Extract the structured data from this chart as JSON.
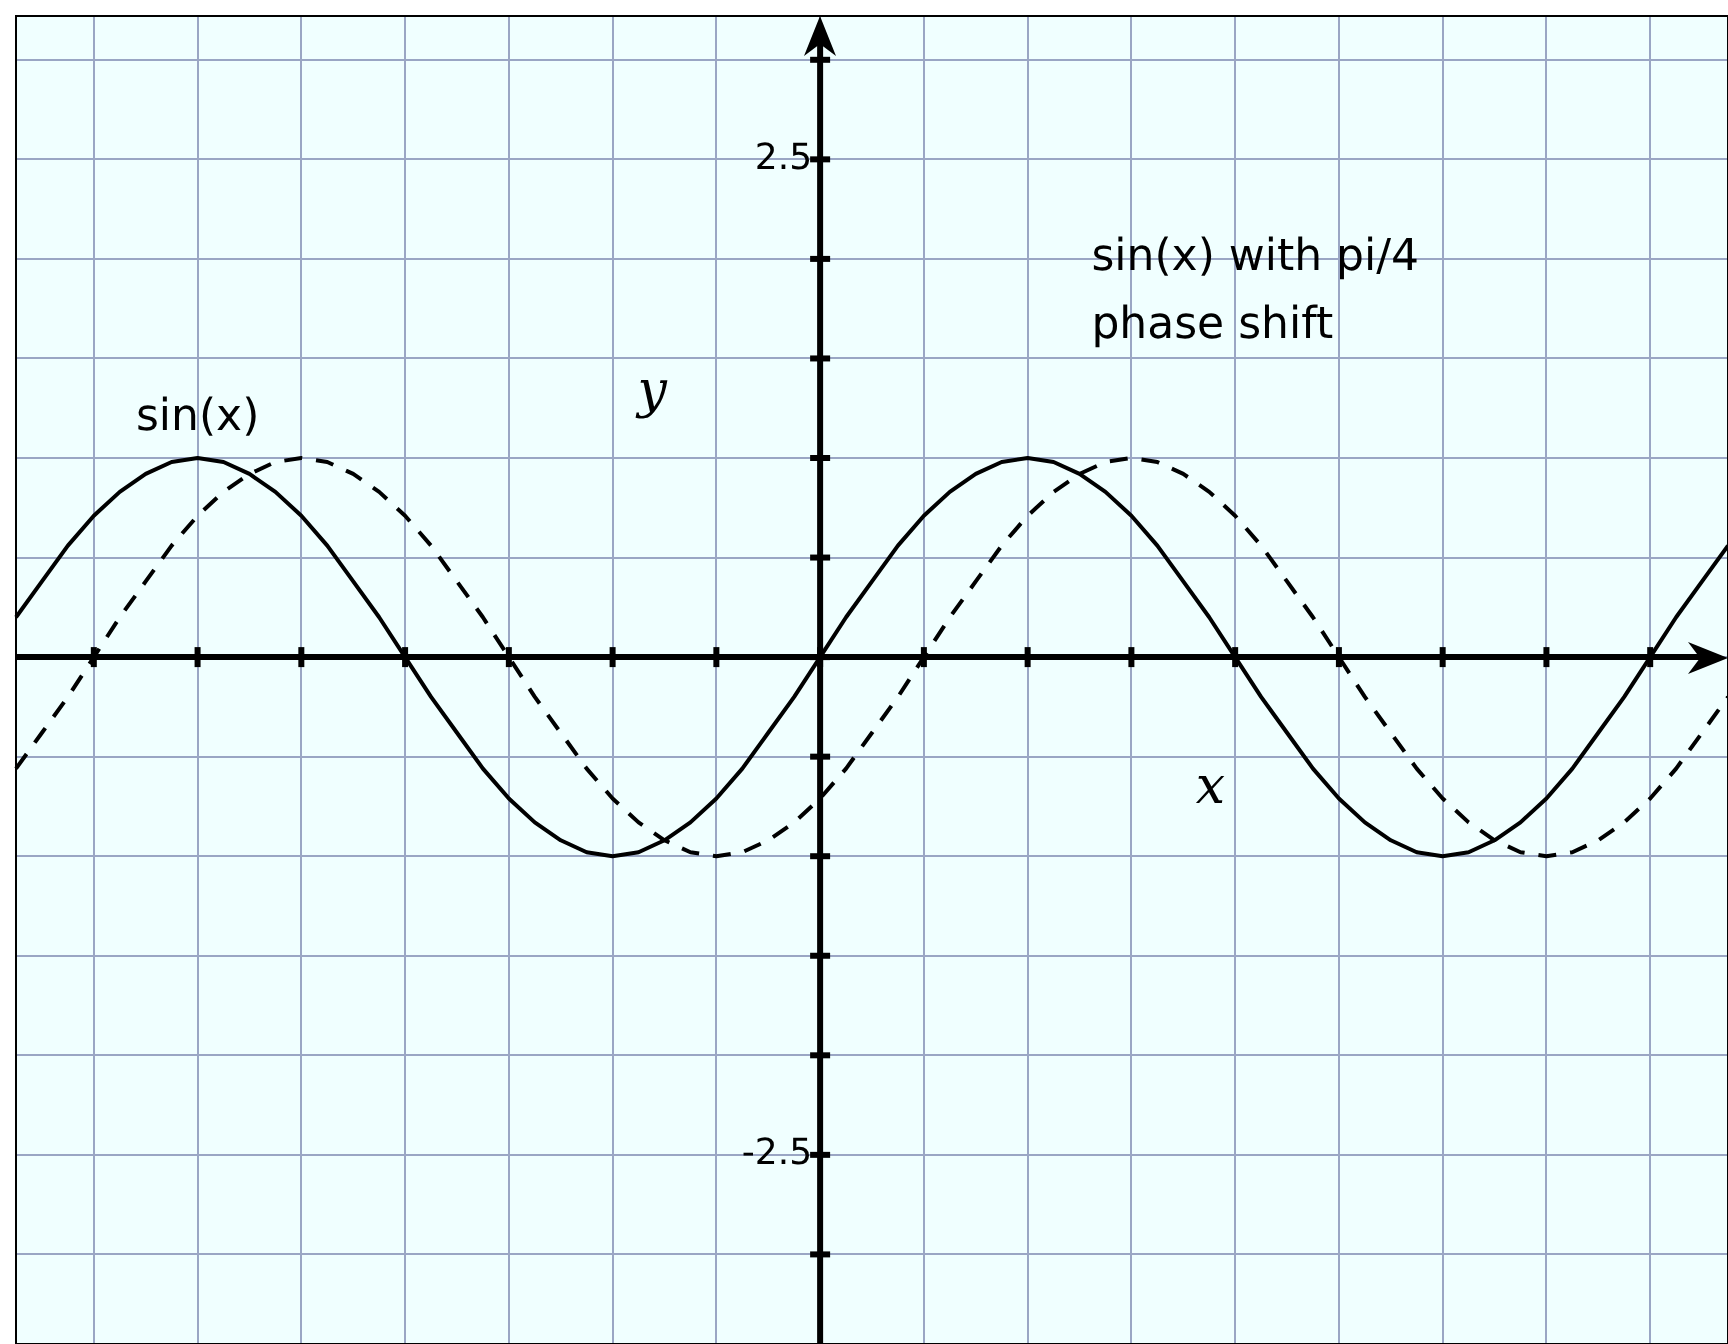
{
  "chart_data": {
    "type": "line",
    "xlabel": "x",
    "ylabel": "y",
    "categories": [
      null,
      null,
      null,
      null,
      null,
      null,
      null,
      null,
      null,
      null,
      null,
      null,
      null,
      null,
      null,
      null,
      null,
      null,
      null,
      null,
      null,
      null,
      null,
      null,
      null,
      null,
      null,
      null,
      null,
      null,
      null,
      null,
      null,
      null,
      null,
      null,
      null,
      null,
      null,
      null,
      null,
      null,
      null,
      null,
      null,
      null,
      null,
      null,
      null,
      null,
      null,
      null,
      null,
      null,
      null,
      null,
      null,
      null,
      null,
      null,
      null,
      null,
      null,
      null,
      null,
      null,
      null
    ],
    "series": [
      {
        "name": "sin(x)",
        "color": "#000000",
        "line_style": "solid",
        "values": [
          0.2,
          0.38,
          0.56,
          0.71,
          0.83,
          0.92,
          0.98,
          1,
          0.98,
          0.92,
          0.83,
          0.71,
          0.56,
          0.38,
          0.2,
          0,
          -0.2,
          -0.38,
          -0.56,
          -0.71,
          -0.83,
          -0.92,
          -0.98,
          -1,
          -0.98,
          -0.92,
          -0.83,
          -0.71,
          -0.56,
          -0.38,
          -0.2,
          0,
          0.2,
          0.38,
          0.56,
          0.71,
          0.83,
          0.92,
          0.98,
          1,
          0.98,
          0.92,
          0.83,
          0.71,
          0.56,
          0.38,
          0.2,
          0,
          -0.2,
          -0.38,
          -0.56,
          -0.71,
          -0.83,
          -0.92,
          -0.98,
          -1,
          -0.98,
          -0.92,
          -0.83,
          -0.71,
          -0.56,
          -0.38,
          -0.2,
          0,
          0.2,
          0.38,
          0.56
        ]
      },
      {
        "name": "sin(x) with pi/4 phase shift",
        "color": "#000000",
        "line_style": "dashed",
        "values": [
          -0.56,
          -0.38,
          -0.2,
          0,
          0.2,
          0.38,
          0.56,
          0.71,
          0.83,
          0.92,
          0.98,
          1,
          0.98,
          0.92,
          0.83,
          0.71,
          0.56,
          0.38,
          0.2,
          0,
          -0.2,
          -0.38,
          -0.56,
          -0.71,
          -0.83,
          -0.92,
          -0.98,
          -1,
          -0.98,
          -0.92,
          -0.83,
          -0.71,
          -0.56,
          -0.38,
          -0.2,
          0,
          0.2,
          0.38,
          0.56,
          0.71,
          0.83,
          0.92,
          0.98,
          1,
          0.98,
          0.92,
          0.83,
          0.71,
          0.56,
          0.38,
          0.2,
          0,
          -0.2,
          -0.38,
          -0.56,
          -0.71,
          -0.83,
          -0.92,
          -0.98,
          -1,
          -0.98,
          -0.92,
          -0.83,
          -0.71,
          -0.56,
          -0.38,
          -0.2
        ]
      }
    ],
    "ylim": [
      -3.45,
      3.22
    ],
    "yticks": [
      {
        "value": -3,
        "label": null
      },
      -2.5,
      {
        "value": -2,
        "label": null
      },
      {
        "value": -1.5,
        "label": null
      },
      {
        "value": -1,
        "label": null
      },
      {
        "value": -0.5,
        "label": null
      },
      {
        "value": 0,
        "label": null
      },
      {
        "value": 0.5,
        "label": null
      },
      {
        "value": 1,
        "label": null
      },
      {
        "value": 1.5,
        "label": null
      },
      {
        "value": 2,
        "label": null
      },
      2.5,
      {
        "value": 3,
        "label": null
      }
    ],
    "tick_labels": "y",
    "grid": true,
    "legend": false,
    "marker": "none"
  }
}
